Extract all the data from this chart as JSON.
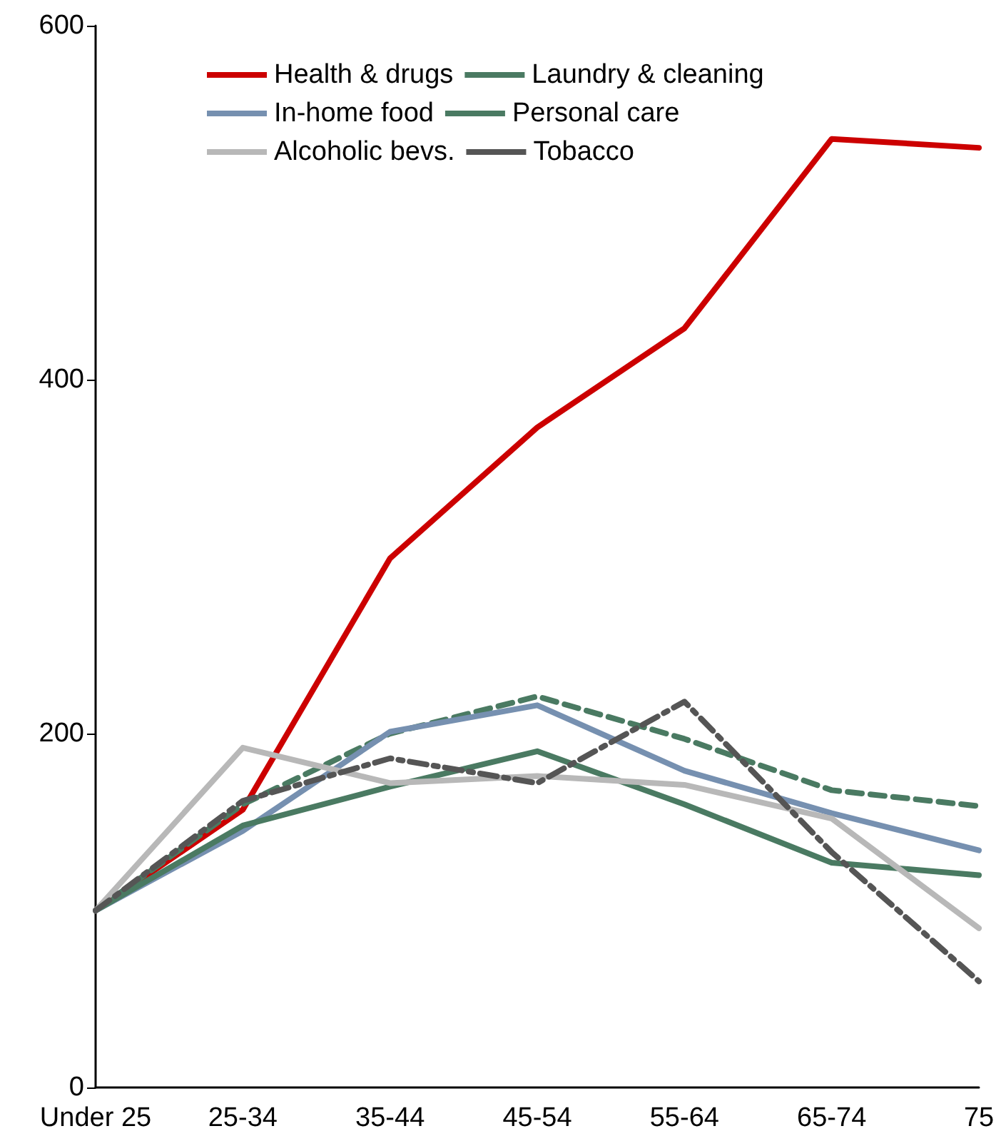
{
  "chart_data": {
    "type": "line",
    "categories": [
      "Under 25",
      "25-34",
      "35-44",
      "45-54",
      "55-64",
      "65-74",
      "75"
    ],
    "series": [
      {
        "name": "Health & drugs",
        "color": "#cc0000",
        "line_style": "solid",
        "values": [
          100,
          157,
          299,
          373,
          429,
          536,
          531
        ]
      },
      {
        "name": "Laundry & cleaning",
        "color": "#4a7a62",
        "line_style": "dashed",
        "values": [
          100,
          160,
          200,
          221,
          197,
          168,
          159
        ]
      },
      {
        "name": "In-home food",
        "color": "#7690b0",
        "line_style": "solid",
        "values": [
          100,
          145,
          201,
          216,
          179,
          155,
          134
        ]
      },
      {
        "name": "Personal care",
        "color": "#4a7a62",
        "line_style": "solid",
        "values": [
          100,
          148,
          170,
          190,
          160,
          127,
          120
        ]
      },
      {
        "name": "Alcoholic bevs.",
        "color": "#b8b8b8",
        "line_style": "solid",
        "values": [
          100,
          192,
          172,
          176,
          171,
          152,
          90
        ]
      },
      {
        "name": "Tobacco",
        "color": "#555555",
        "line_style": "dashdot",
        "values": [
          100,
          162,
          186,
          172,
          218,
          133,
          60
        ]
      }
    ],
    "ylim": [
      0,
      600
    ],
    "yticks": [
      0,
      200,
      400,
      600
    ],
    "grid": false,
    "legend": "top",
    "marker": "none"
  }
}
